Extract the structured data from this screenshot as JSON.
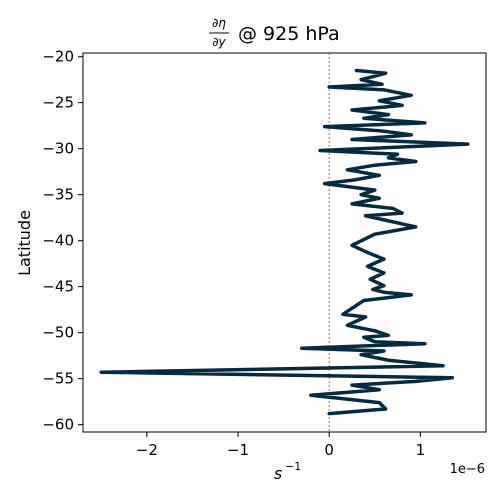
{
  "chart_data": {
    "type": "line",
    "title_fraction_numerator": "∂η",
    "title_fraction_denominator": "∂y",
    "title_suffix": "@ 925 hPa",
    "xlabel_base": "s",
    "xlabel_exponent": "−1",
    "ylabel": "Latitude",
    "x_offset_text": "1e−6",
    "x_scale": 1e-06,
    "xlim": [
      -2.7,
      1.72
    ],
    "ylim": [
      -60.8,
      -19.6
    ],
    "x_ticks": [
      -2,
      -1,
      0,
      1
    ],
    "x_tick_labels": [
      "−2",
      "−1",
      "0",
      "1"
    ],
    "y_ticks": [
      -20,
      -25,
      -30,
      -35,
      -40,
      -45,
      -50,
      -55,
      -60
    ],
    "y_tick_labels": [
      "−20",
      "−25",
      "−30",
      "−35",
      "−40",
      "−45",
      "−50",
      "−55",
      "−60"
    ],
    "reference_line_x": 0,
    "reference_line_color": "#d62728",
    "line_color": "#062a3f",
    "series": [
      {
        "x": [
          0.3,
          0.62,
          0.35,
          0.58,
          0.0,
          0.6,
          0.9,
          0.55,
          0.8,
          0.25,
          0.65,
          0.38,
          1.05,
          -0.05,
          0.6,
          0.9,
          0.25,
          1.52,
          -0.1,
          0.75,
          0.65,
          0.95,
          0.5,
          0.2,
          0.55,
          0.28,
          -0.05,
          0.5,
          0.35,
          0.55,
          0.25,
          0.7,
          0.8,
          0.4,
          0.95,
          0.5,
          0.25,
          0.4,
          0.6,
          0.42,
          0.6,
          0.45,
          0.6,
          0.48,
          0.6,
          0.9,
          0.38,
          0.15,
          0.4,
          0.2,
          0.5,
          0.65,
          0.38,
          0.5,
          1.05,
          -0.3,
          0.6,
          0.35,
          0.65,
          1.25,
          -2.5,
          1.35,
          0.95,
          0.25,
          0.55,
          -0.2,
          0.55,
          0.62,
          0.0
        ],
        "y": [
          -21.5,
          -21.8,
          -22.5,
          -23.0,
          -23.3,
          -23.6,
          -24.2,
          -24.8,
          -25.3,
          -25.8,
          -26.3,
          -26.7,
          -27.2,
          -27.6,
          -28.1,
          -28.5,
          -29.0,
          -29.5,
          -30.2,
          -30.6,
          -31.0,
          -31.4,
          -31.8,
          -32.3,
          -32.9,
          -33.4,
          -33.8,
          -34.5,
          -35.0,
          -35.4,
          -36.0,
          -36.5,
          -37.0,
          -37.3,
          -38.5,
          -39.3,
          -40.5,
          -41.2,
          -42.0,
          -42.8,
          -43.5,
          -44.2,
          -44.9,
          -45.3,
          -45.6,
          -45.9,
          -46.5,
          -48.0,
          -48.3,
          -49.2,
          -49.8,
          -50.3,
          -50.5,
          -51.0,
          -51.2,
          -51.7,
          -52.0,
          -52.4,
          -53.0,
          -53.6,
          -54.3,
          -54.9,
          -55.3,
          -55.7,
          -56.2,
          -56.8,
          -57.6,
          -58.3,
          -58.8
        ]
      }
    ]
  }
}
